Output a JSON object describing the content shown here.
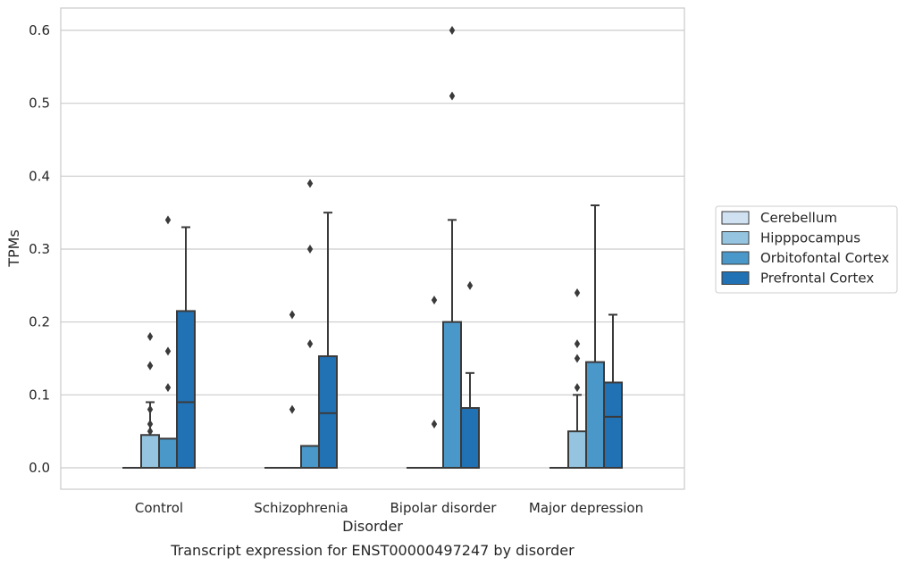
{
  "caption": "Transcript expression for ENST00000497247 by disorder",
  "chart_data": {
    "type": "boxplot",
    "xlabel": "Disorder",
    "ylabel": "TPMs",
    "ylim": [
      -0.03,
      0.63
    ],
    "yticks": [
      0.0,
      0.1,
      0.2,
      0.3,
      0.4,
      0.5,
      0.6
    ],
    "ytick_labels": [
      "0.0",
      "0.1",
      "0.2",
      "0.3",
      "0.4",
      "0.5",
      "0.6"
    ],
    "grid": "horizontal",
    "legend_position": "right",
    "categories": [
      "Control",
      "Schizophrenia",
      "Bipolar disorder",
      "Major depression"
    ],
    "series": [
      {
        "name": "Cerebellum",
        "color": "#d0e1f2",
        "boxes": [
          {
            "q1": 0,
            "median": 0,
            "q3": 0,
            "whisker_low": 0,
            "whisker_high": 0,
            "outliers": []
          },
          {
            "q1": 0,
            "median": 0,
            "q3": 0,
            "whisker_low": 0,
            "whisker_high": 0,
            "outliers": []
          },
          {
            "q1": 0,
            "median": 0,
            "q3": 0,
            "whisker_low": 0,
            "whisker_high": 0,
            "outliers": []
          },
          {
            "q1": 0,
            "median": 0,
            "q3": 0,
            "whisker_low": 0,
            "whisker_high": 0,
            "outliers": []
          }
        ]
      },
      {
        "name": "Hipppocampus",
        "color": "#94c4df",
        "boxes": [
          {
            "q1": 0,
            "median": 0,
            "q3": 0.045,
            "whisker_low": 0,
            "whisker_high": 0.09,
            "outliers": [
              0.05,
              0.06,
              0.08,
              0.14,
              0.14,
              0.18
            ]
          },
          {
            "q1": 0,
            "median": 0,
            "q3": 0,
            "whisker_low": 0,
            "whisker_high": 0,
            "outliers": [
              0.08,
              0.21
            ]
          },
          {
            "q1": 0,
            "median": 0,
            "q3": 0,
            "whisker_low": 0,
            "whisker_high": 0,
            "outliers": [
              0.06,
              0.23
            ]
          },
          {
            "q1": 0,
            "median": 0,
            "q3": 0.05,
            "whisker_low": 0,
            "whisker_high": 0.1,
            "outliers": [
              0.11,
              0.15,
              0.17,
              0.24
            ]
          }
        ]
      },
      {
        "name": "Orbitofontal Cortex",
        "color": "#4a98c9",
        "boxes": [
          {
            "q1": 0,
            "median": 0,
            "q3": 0.04,
            "whisker_low": 0,
            "whisker_high": 0.04,
            "outliers": [
              0.11,
              0.16,
              0.34
            ]
          },
          {
            "q1": 0,
            "median": 0,
            "q3": 0.03,
            "whisker_low": 0,
            "whisker_high": 0.03,
            "outliers": [
              0.17,
              0.3,
              0.39
            ]
          },
          {
            "q1": 0,
            "median": 0,
            "q3": 0.2,
            "whisker_low": 0,
            "whisker_high": 0.34,
            "outliers": [
              0.51,
              0.6
            ]
          },
          {
            "q1": 0,
            "median": 0,
            "q3": 0.145,
            "whisker_low": 0,
            "whisker_high": 0.36,
            "outliers": []
          }
        ]
      },
      {
        "name": "Prefrontal Cortex",
        "color": "#2171b5",
        "boxes": [
          {
            "q1": 0,
            "median": 0.09,
            "q3": 0.215,
            "whisker_low": 0,
            "whisker_high": 0.33,
            "outliers": []
          },
          {
            "q1": 0,
            "median": 0.075,
            "q3": 0.153,
            "whisker_low": 0,
            "whisker_high": 0.35,
            "outliers": []
          },
          {
            "q1": 0,
            "median": 0,
            "q3": 0.082,
            "whisker_low": 0,
            "whisker_high": 0.13,
            "outliers": [
              0.25
            ]
          },
          {
            "q1": 0,
            "median": 0.07,
            "q3": 0.117,
            "whisker_low": 0,
            "whisker_high": 0.21,
            "outliers": []
          }
        ]
      }
    ]
  }
}
